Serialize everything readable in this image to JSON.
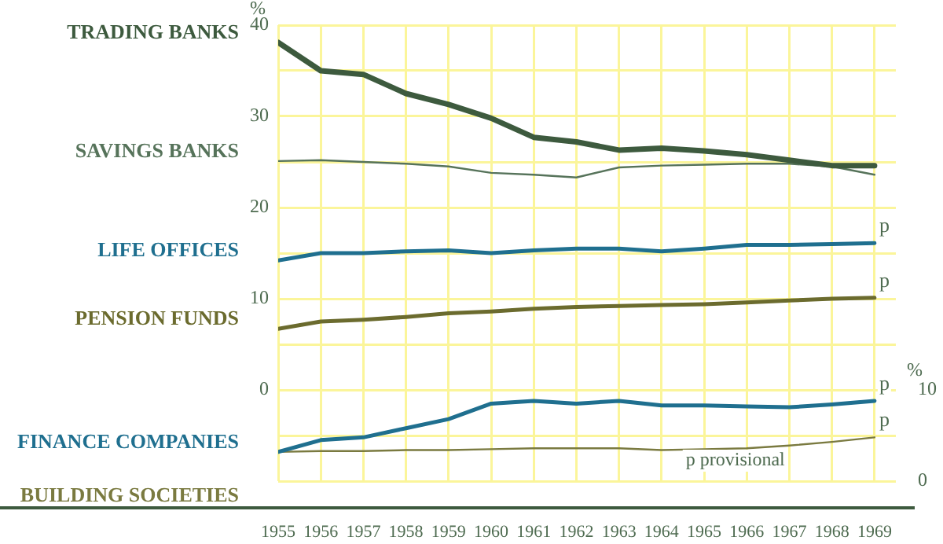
{
  "chart_data": {
    "type": "line",
    "ylabel": "%",
    "y2label": "%",
    "x": [
      1955,
      1956,
      1957,
      1958,
      1959,
      1960,
      1961,
      1962,
      1963,
      1964,
      1965,
      1966,
      1967,
      1968,
      1969
    ],
    "xlim": [
      1955,
      1969.5
    ],
    "xticks": [
      1955,
      1956,
      1957,
      1958,
      1959,
      1960,
      1961,
      1962,
      1963,
      1964,
      1965,
      1966,
      1967,
      1968,
      1969
    ],
    "ylim": [
      -10,
      40
    ],
    "yticks": [
      {
        "value": -10,
        "label": null
      },
      {
        "value": -5,
        "label": null
      },
      0,
      {
        "value": 5,
        "label": null
      },
      10,
      {
        "value": 15,
        "label": null
      },
      20,
      {
        "value": 25,
        "label": null
      },
      30,
      {
        "value": 35,
        "label": null
      },
      40
    ],
    "y2lim": [
      0,
      50
    ],
    "y2ticks": [
      0,
      10
    ],
    "grid": true,
    "marker": "none",
    "line_style": "solid",
    "series": [
      {
        "name": "TRADING BANKS",
        "color": "#3d5a3e",
        "values": [
          38.1,
          35.0,
          34.6,
          32.5,
          31.3,
          29.8,
          27.7,
          27.2,
          26.3,
          26.5,
          26.2,
          25.8,
          25.2,
          24.6,
          24.6
        ]
      },
      {
        "name": "SAVINGS BANKS",
        "color": "#56735a",
        "values": [
          25.1,
          25.2,
          25.0,
          24.8,
          24.5,
          23.8,
          23.6,
          23.3,
          24.4,
          24.6,
          24.7,
          24.8,
          24.8,
          24.5,
          23.6
        ]
      },
      {
        "name": "LIFE OFFICES",
        "color": "#1f6f8f",
        "values": [
          14.2,
          15.0,
          15.0,
          15.2,
          15.3,
          15.0,
          15.3,
          15.5,
          15.5,
          15.2,
          15.5,
          15.9,
          15.9,
          16.0,
          16.1
        ]
      },
      {
        "name": "PENSION FUNDS",
        "color": "#6b6b2e",
        "values": [
          6.7,
          7.5,
          7.7,
          8.0,
          8.4,
          8.6,
          8.9,
          9.1,
          9.2,
          9.3,
          9.4,
          9.6,
          9.8,
          10.0,
          10.1
        ]
      },
      {
        "name": "FINANCE COMPANIES",
        "color": "#1f6f8f",
        "axis": "y2",
        "values": [
          3.2,
          4.5,
          4.8,
          5.8,
          6.8,
          8.5,
          8.8,
          8.5,
          8.8,
          8.3,
          8.3,
          8.2,
          8.1,
          8.4,
          8.8
        ]
      },
      {
        "name": "BUILDING SOCIETIES",
        "color": "#7a7a40",
        "axis": "y2",
        "values": [
          3.2,
          3.3,
          3.3,
          3.4,
          3.4,
          3.5,
          3.6,
          3.6,
          3.6,
          3.4,
          3.5,
          3.6,
          3.9,
          4.3,
          4.8
        ]
      }
    ],
    "annotations": [
      "p",
      "p",
      "p",
      "p",
      "p provisional"
    ]
  }
}
